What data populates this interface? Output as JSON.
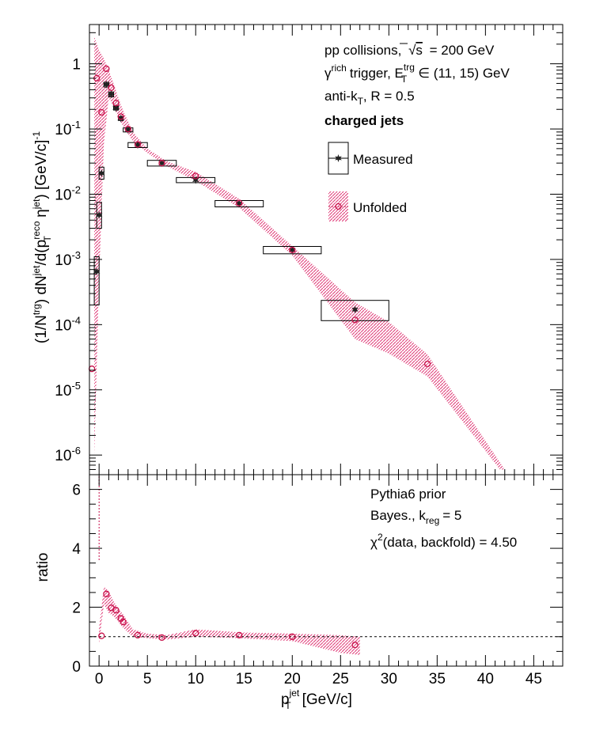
{
  "colors": {
    "unfolded": "#c8104a",
    "measured": "#222222",
    "band": "#e0407a"
  },
  "chart_data": [
    {
      "type": "scatter",
      "yscale": "log",
      "xlim": [
        -1,
        48
      ],
      "ylim": [
        5e-07,
        4
      ],
      "x_ticks": [
        0,
        5,
        10,
        15,
        20,
        25,
        30,
        35,
        40,
        45
      ],
      "y_ticks": [
        {
          "value": 1e-06,
          "base": "10",
          "exp": "-6"
        },
        {
          "value": 1e-05,
          "base": "10",
          "exp": "-5"
        },
        {
          "value": 0.0001,
          "base": "10",
          "exp": "-4"
        },
        {
          "value": 0.001,
          "base": "10",
          "exp": "-3"
        },
        {
          "value": 0.01,
          "base": "10",
          "exp": "-2"
        },
        {
          "value": 0.1,
          "base": "10",
          "exp": "-1"
        },
        {
          "value": 1,
          "base": "1",
          "exp": ""
        }
      ],
      "ylabel": "(1/N^trg) dN^jet/d(p_T^reco η^jet) [GeV/c]^-1",
      "ylabel_parts": {
        "p1": "(1/N",
        "trg": "trg",
        "p2": ") dN",
        "jet": "jet",
        "p3": "/d(p",
        "reco": "reco",
        "T": "T",
        "p4": " η",
        "jet2": "jet",
        "p5": ") [GeV/c]",
        "minus1": "-1"
      },
      "annotations": {
        "line1": "pp collisions, √s = 200 GeV",
        "line1_a": "pp collisions,",
        "line1_sqrt": "√",
        "line1_s": "s",
        "line1_b": "= 200 GeV",
        "line2_gamma": "γ",
        "line2_rich": "rich",
        "line2_a": "trigger, E",
        "line2_trg": "trg",
        "line2_T": "T",
        "line2_b": "∈ (11, 15) GeV",
        "line3_a": "anti-k",
        "line3_T": "T",
        "line3_b": ", R = 0.5",
        "line4": "charged jets"
      },
      "legend": {
        "placement": "top-right",
        "measured": "Measured",
        "unfolded": "Unfolded"
      },
      "series": [
        {
          "name": "Measured",
          "marker": "star",
          "points": [
            {
              "x": -0.25,
              "y": 0.00065,
              "xw": 0.25,
              "ylo": 0.0002,
              "yhi": 0.0011
            },
            {
              "x": 0.0,
              "y": 0.0048,
              "xw": 0.25,
              "ylo": 0.003,
              "yhi": 0.0075
            },
            {
              "x": 0.25,
              "y": 0.021,
              "xw": 0.25,
              "ylo": 0.017,
              "yhi": 0.026
            },
            {
              "x": 0.75,
              "y": 0.48,
              "xw": 0.25,
              "ylo": 0.44,
              "yhi": 0.52
            },
            {
              "x": 1.25,
              "y": 0.34,
              "xw": 0.25,
              "ylo": 0.31,
              "yhi": 0.37
            },
            {
              "x": 1.75,
              "y": 0.21,
              "xw": 0.25,
              "ylo": 0.195,
              "yhi": 0.225
            },
            {
              "x": 2.25,
              "y": 0.145,
              "xw": 0.25,
              "ylo": 0.135,
              "yhi": 0.155
            },
            {
              "x": 3.0,
              "y": 0.097,
              "xw": 0.5,
              "ylo": 0.09,
              "yhi": 0.104
            },
            {
              "x": 4.0,
              "y": 0.057,
              "xw": 1.0,
              "ylo": 0.052,
              "yhi": 0.062
            },
            {
              "x": 6.5,
              "y": 0.03,
              "xw": 1.5,
              "ylo": 0.027,
              "yhi": 0.033
            },
            {
              "x": 10.0,
              "y": 0.0165,
              "xw": 2.0,
              "ylo": 0.015,
              "yhi": 0.018
            },
            {
              "x": 14.5,
              "y": 0.0072,
              "xw": 2.5,
              "ylo": 0.0064,
              "yhi": 0.008
            },
            {
              "x": 20.0,
              "y": 0.0014,
              "xw": 3.0,
              "ylo": 0.00122,
              "yhi": 0.00158
            },
            {
              "x": 26.5,
              "y": 0.00017,
              "xw": 3.5,
              "ylo": 0.000115,
              "yhi": 0.000235
            }
          ]
        },
        {
          "name": "Unfolded",
          "marker": "open-circle",
          "points": [
            {
              "x": -0.75,
              "y": 2.1e-05
            },
            {
              "x": -0.25,
              "y": 0.6
            },
            {
              "x": 0.25,
              "y": 0.18
            },
            {
              "x": 0.75,
              "y": 0.84
            },
            {
              "x": 1.25,
              "y": 0.43
            },
            {
              "x": 1.75,
              "y": 0.25
            },
            {
              "x": 2.25,
              "y": 0.155
            },
            {
              "x": 3.0,
              "y": 0.1
            },
            {
              "x": 4.0,
              "y": 0.058
            },
            {
              "x": 6.5,
              "y": 0.03
            },
            {
              "x": 10.0,
              "y": 0.019
            },
            {
              "x": 14.5,
              "y": 0.0073
            },
            {
              "x": 20.0,
              "y": 0.0014
            },
            {
              "x": 26.5,
              "y": 0.000118
            },
            {
              "x": 34.0,
              "y": 2.5e-05
            }
          ],
          "band_upper": [
            [
              -0.5,
              2.6
            ],
            [
              0.0,
              1.6
            ],
            [
              0.5,
              1.2
            ],
            [
              1.0,
              0.8
            ],
            [
              1.5,
              0.5
            ],
            [
              2.0,
              0.3
            ],
            [
              2.5,
              0.19
            ],
            [
              3.5,
              0.09
            ],
            [
              5.0,
              0.05
            ],
            [
              7.0,
              0.032
            ],
            [
              10.0,
              0.022
            ],
            [
              14.5,
              0.0085
            ],
            [
              20.0,
              0.0016
            ],
            [
              26.5,
              0.00022
            ],
            [
              30.0,
              0.00011
            ],
            [
              34.0,
              3.5e-05
            ],
            [
              42.0,
              6e-07
            ]
          ],
          "band_lower": [
            [
              -0.5,
              1e-06
            ],
            [
              0.0,
              0.0005
            ],
            [
              0.5,
              0.06
            ],
            [
              1.0,
              0.3
            ],
            [
              1.5,
              0.22
            ],
            [
              2.0,
              0.15
            ],
            [
              2.5,
              0.11
            ],
            [
              3.5,
              0.065
            ],
            [
              5.0,
              0.043
            ],
            [
              7.0,
              0.027
            ],
            [
              10.0,
              0.016
            ],
            [
              14.5,
              0.0062
            ],
            [
              20.0,
              0.00115
            ],
            [
              26.5,
              6e-05
            ],
            [
              30.0,
              3.6e-05
            ],
            [
              34.0,
              1.6e-05
            ],
            [
              41.5,
              6e-07
            ]
          ]
        }
      ]
    },
    {
      "type": "scatter",
      "xlim": [
        -1,
        48
      ],
      "ylim": [
        0,
        6.5
      ],
      "x_ticks": [
        0,
        5,
        10,
        15,
        20,
        25,
        30,
        35,
        40,
        45
      ],
      "y_ticks": [
        0,
        2,
        4,
        6
      ],
      "xlabel_parts": {
        "p": "p",
        "jet": "jet",
        "T": "T",
        "unit": "[GeV/c]"
      },
      "ylabel": "ratio",
      "reference_line": 1,
      "annotations": {
        "line1": "Pythia6 prior",
        "line2_a": "Bayes., k",
        "line2_reg": "reg",
        "line2_b": "= 5",
        "line3_chi": "χ",
        "line3_2": "2",
        "line3_b": "(data, backfold) = 4.50"
      },
      "series": [
        {
          "name": "Unfolded",
          "marker": "open-circle",
          "points": [
            {
              "x": 0.25,
              "y": 1.03
            },
            {
              "x": 0.75,
              "y": 2.45
            },
            {
              "x": 1.25,
              "y": 1.98
            },
            {
              "x": 1.75,
              "y": 1.9
            },
            {
              "x": 2.25,
              "y": 1.62
            },
            {
              "x": 2.5,
              "y": 1.5
            },
            {
              "x": 4.0,
              "y": 1.05
            },
            {
              "x": 6.5,
              "y": 0.97
            },
            {
              "x": 10.0,
              "y": 1.12
            },
            {
              "x": 14.5,
              "y": 1.05
            },
            {
              "x": 20.0,
              "y": 1.0
            },
            {
              "x": 26.5,
              "y": 0.72
            }
          ],
          "spike": {
            "x": 0.0,
            "y_from": 3.6,
            "y_to": 6.5
          },
          "band_upper": [
            [
              0.0,
              1.3
            ],
            [
              0.5,
              2.7
            ],
            [
              1.0,
              2.55
            ],
            [
              1.5,
              2.2
            ],
            [
              2.0,
              1.95
            ],
            [
              2.5,
              1.75
            ],
            [
              3.5,
              1.25
            ],
            [
              5.0,
              1.1
            ],
            [
              7.0,
              1.05
            ],
            [
              10.0,
              1.25
            ],
            [
              14.5,
              1.15
            ],
            [
              20.0,
              1.1
            ],
            [
              25.0,
              1.05
            ],
            [
              27.0,
              1.0
            ]
          ],
          "band_lower": [
            [
              0.0,
              0.75
            ],
            [
              0.5,
              2.1
            ],
            [
              1.0,
              1.8
            ],
            [
              1.5,
              1.7
            ],
            [
              2.0,
              1.5
            ],
            [
              2.5,
              1.3
            ],
            [
              3.5,
              1.0
            ],
            [
              5.0,
              0.95
            ],
            [
              7.0,
              0.9
            ],
            [
              10.0,
              1.0
            ],
            [
              14.5,
              0.95
            ],
            [
              20.0,
              0.85
            ],
            [
              25.0,
              0.45
            ],
            [
              27.0,
              0.38
            ]
          ]
        }
      ]
    }
  ]
}
